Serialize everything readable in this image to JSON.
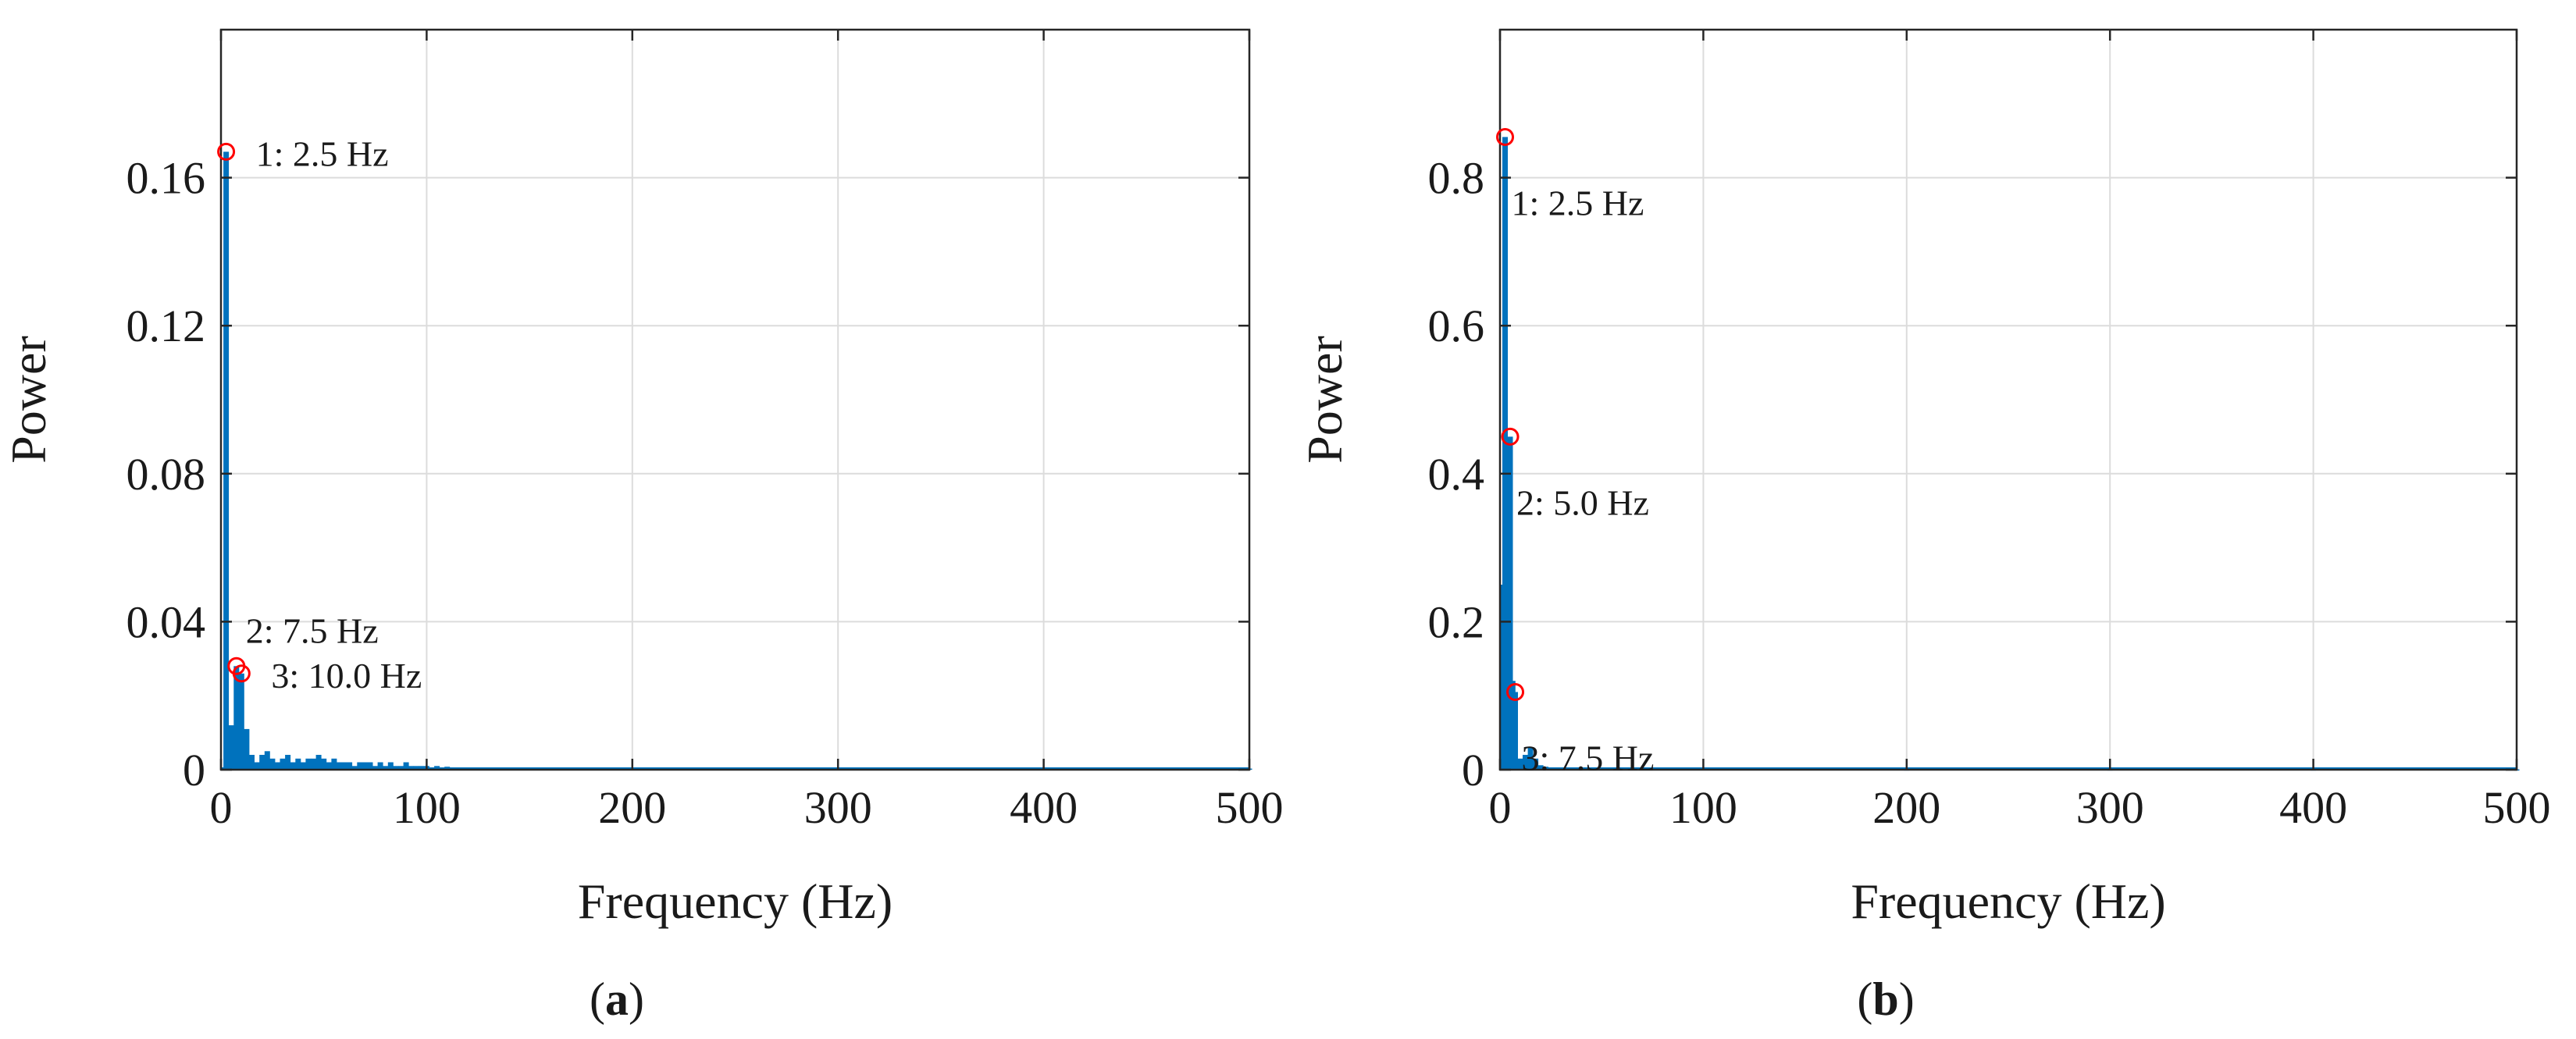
{
  "figure": {
    "panels": [
      {
        "caption_open": "(",
        "caption_letter": "a",
        "caption_close": ")"
      },
      {
        "caption_open": "(",
        "caption_letter": "b",
        "caption_close": ")"
      }
    ]
  },
  "colors": {
    "series": "#0072BD",
    "marker": "#FF0000",
    "grid": "#dcdcdc",
    "axes": "#262626"
  },
  "chart_data": [
    {
      "type": "bar",
      "xlabel": "Frequency (Hz)",
      "ylabel": "Power",
      "xlim": [
        0,
        500
      ],
      "ylim": [
        0,
        0.2
      ],
      "xticks": [
        0,
        100,
        200,
        300,
        400,
        500
      ],
      "xtick_labels": [
        "0",
        "100",
        "200",
        "300",
        "400",
        "500"
      ],
      "yticks": [
        0,
        0.04,
        0.08,
        0.12,
        0.16
      ],
      "ytick_labels": [
        "0",
        "0.04",
        "0.08",
        "0.12",
        "0.16"
      ],
      "grid": true,
      "series": [
        {
          "x": [
            2.5,
            5.0,
            7.5,
            10.0,
            12.5,
            15.0,
            17.5,
            20.0,
            22.5,
            25.0,
            27.5,
            30.0,
            32.5,
            35.0,
            37.5,
            40.0,
            42.5,
            45.0,
            47.5,
            50.0,
            52.5,
            55.0,
            57.5,
            60.0,
            62.5,
            65.0,
            67.5,
            70.0,
            72.5,
            75.0,
            77.5,
            80.0,
            82.5,
            85.0,
            87.5,
            90.0,
            92.5,
            95.0,
            97.5,
            100.0,
            105.0,
            110.0,
            120.0,
            130.0,
            140.0,
            150.0,
            200.0,
            250.0,
            300.0,
            350.0,
            400.0,
            450.0,
            500.0
          ],
          "y": [
            0.167,
            0.012,
            0.028,
            0.026,
            0.011,
            0.004,
            0.002,
            0.004,
            0.005,
            0.003,
            0.002,
            0.003,
            0.004,
            0.002,
            0.003,
            0.002,
            0.003,
            0.003,
            0.004,
            0.003,
            0.002,
            0.003,
            0.002,
            0.002,
            0.002,
            0.001,
            0.002,
            0.002,
            0.002,
            0.001,
            0.002,
            0.001,
            0.002,
            0.001,
            0.001,
            0.002,
            0.001,
            0.001,
            0.001,
            0.001,
            0.001,
            0.0008,
            0.0006,
            0.0005,
            0.0005,
            0.0004,
            0.0003,
            0.0003,
            0.0003,
            0.0003,
            0.0003,
            0.0003,
            0.0003
          ]
        }
      ],
      "peaks": [
        {
          "x": 2.5,
          "y": 0.167,
          "label": "1: 2.5 Hz",
          "anchor": "right"
        },
        {
          "x": 7.5,
          "y": 0.028,
          "label": "2: 7.5 Hz",
          "anchor": "upper-right"
        },
        {
          "x": 10.0,
          "y": 0.026,
          "label": "3: 10.0 Hz",
          "anchor": "right"
        }
      ]
    },
    {
      "type": "bar",
      "xlabel": "Frequency (Hz)",
      "ylabel": "Power",
      "xlim": [
        0,
        500
      ],
      "ylim": [
        0,
        1.0
      ],
      "xticks": [
        0,
        100,
        200,
        300,
        400,
        500
      ],
      "xtick_labels": [
        "0",
        "100",
        "200",
        "300",
        "400",
        "500"
      ],
      "yticks": [
        0,
        0.2,
        0.4,
        0.6,
        0.8
      ],
      "ytick_labels": [
        "0",
        "0.2",
        "0.4",
        "0.6",
        "0.8"
      ],
      "grid": true,
      "series": [
        {
          "x": [
            1.25,
            2.5,
            3.75,
            5.0,
            6.25,
            7.5,
            10.0,
            12.5,
            15.0,
            17.5,
            20.0,
            22.5,
            25.0,
            30.0,
            40.0,
            50.0,
            75.0,
            100.0,
            200.0,
            300.0,
            400.0,
            500.0
          ],
          "y": [
            0.25,
            0.855,
            0.2,
            0.45,
            0.12,
            0.105,
            0.015,
            0.02,
            0.03,
            0.015,
            0.006,
            0.004,
            0.003,
            0.002,
            0.001,
            0.001,
            0.0008,
            0.0005,
            0.0004,
            0.0004,
            0.0004,
            0.0004
          ]
        }
      ],
      "peaks": [
        {
          "x": 2.5,
          "y": 0.855,
          "label": "1: 2.5 Hz",
          "anchor": "below-right"
        },
        {
          "x": 5.0,
          "y": 0.45,
          "label": "2: 5.0 Hz",
          "anchor": "below-right"
        },
        {
          "x": 7.5,
          "y": 0.105,
          "label": "3: 7.5 Hz",
          "anchor": "below-right"
        }
      ]
    }
  ]
}
